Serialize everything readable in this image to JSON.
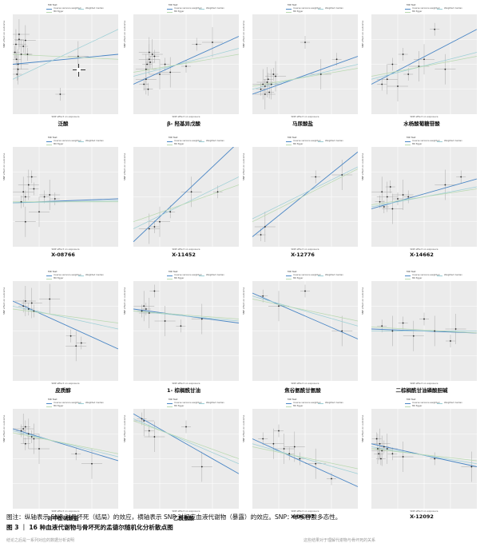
{
  "legend": {
    "title": "MR Test",
    "items": [
      {
        "label": "Inverse variance weighted",
        "color": "#4a86c5"
      },
      {
        "label": "Weighted median",
        "color": "#9ccfd6"
      },
      {
        "label": "MR Egger",
        "color": "#b9d9b0"
      }
    ]
  },
  "axes": {
    "xlabel": "SNP effect on exposure",
    "ylabel": "SNP effect on outcome"
  },
  "caption": {
    "note": "图注：纵轴表示 SNP 对骨坏死（结局）的效应，横轴表示 SNP 对相应血液代谢物（暴露）的效应。SNP：单核苷酸多态性。",
    "figure_label": "图 3 ｜ 16 种血液代谢物与骨坏死的孟德尔随机化分析散点图"
  },
  "footer": {
    "left": "结论之后是一系列对应的数据分析说明",
    "right": "这些结果对于理解代谢物与骨坏死的关系"
  },
  "chart_data": [
    {
      "type": "scatter",
      "title": "泛酸",
      "x": [
        0.02,
        0.03,
        0.035,
        0.05,
        0.06,
        0.08,
        0.1,
        0.12,
        0.14,
        0.05,
        0.04,
        0.06,
        0.45,
        0.62
      ],
      "y": [
        0.62,
        0.7,
        0.55,
        0.5,
        0.75,
        0.6,
        0.68,
        0.74,
        0.6,
        0.45,
        0.4,
        0.8,
        0.2,
        0.58
      ],
      "lines": [
        [
          0.5,
          0.6
        ],
        [
          0.35,
          0.85
        ],
        [
          0.6,
          0.55
        ]
      ]
    },
    {
      "type": "scatter",
      "title": "β- 羟基异戊酸",
      "x": [
        0.1,
        0.12,
        0.13,
        0.15,
        0.16,
        0.18,
        0.2,
        0.12,
        0.14,
        0.25,
        0.3,
        0.35,
        0.6,
        0.75,
        0.5,
        0.15
      ],
      "y": [
        0.3,
        0.45,
        0.5,
        0.55,
        0.52,
        0.6,
        0.58,
        0.35,
        0.25,
        0.4,
        0.5,
        0.42,
        0.7,
        0.72,
        0.48,
        0.62
      ],
      "lines": [
        [
          0.3,
          0.78
        ],
        [
          0.38,
          0.66
        ],
        [
          0.42,
          0.6
        ]
      ]
    },
    {
      "type": "scatter",
      "title": "马尿酸盐",
      "x": [
        0.08,
        0.1,
        0.12,
        0.14,
        0.15,
        0.18,
        0.2,
        0.22,
        0.5,
        0.65,
        0.8,
        0.12,
        0.16
      ],
      "y": [
        0.25,
        0.3,
        0.28,
        0.32,
        0.35,
        0.3,
        0.4,
        0.38,
        0.72,
        0.4,
        0.55,
        0.2,
        0.22
      ],
      "lines": [
        [
          0.2,
          0.58
        ],
        [
          0.25,
          0.5
        ],
        [
          0.28,
          0.46
        ]
      ]
    },
    {
      "type": "scatter",
      "title": "水杨酸葡糖苷酸",
      "x": [
        0.1,
        0.15,
        0.2,
        0.25,
        0.35,
        0.5,
        0.6,
        0.7,
        0.3,
        0.45
      ],
      "y": [
        0.3,
        0.35,
        0.5,
        0.28,
        0.4,
        0.55,
        0.85,
        0.45,
        0.6,
        0.48
      ],
      "lines": [
        [
          0.3,
          0.85
        ],
        [
          0.35,
          0.62
        ],
        [
          0.38,
          0.58
        ]
      ]
    },
    {
      "type": "scatter",
      "title": "X-08766",
      "x": [
        0.08,
        0.1,
        0.12,
        0.15,
        0.2,
        0.25,
        0.3,
        0.35,
        0.4,
        0.12,
        0.18
      ],
      "y": [
        0.45,
        0.55,
        0.5,
        0.62,
        0.58,
        0.35,
        0.5,
        0.52,
        0.48,
        0.25,
        0.7
      ],
      "lines": [
        [
          0.44,
          0.48
        ],
        [
          0.44,
          0.46
        ],
        [
          0.45,
          0.45
        ]
      ]
    },
    {
      "type": "scatter",
      "title": "X-11452",
      "x": [
        0.2,
        0.25,
        0.35,
        0.55,
        0.8,
        0.15
      ],
      "y": [
        0.2,
        0.25,
        0.35,
        0.55,
        0.55,
        0.18
      ],
      "lines": [
        [
          0.05,
          1.05
        ],
        [
          0.18,
          0.7
        ],
        [
          0.25,
          0.62
        ]
      ]
    },
    {
      "type": "scatter",
      "title": "X-12776",
      "x": [
        0.08,
        0.12,
        0.6,
        0.85
      ],
      "y": [
        0.12,
        0.2,
        0.7,
        0.72
      ],
      "lines": [
        [
          0.1,
          0.95
        ],
        [
          0.28,
          0.8
        ],
        [
          0.25,
          0.78
        ]
      ]
    },
    {
      "type": "scatter",
      "title": "X-14662",
      "x": [
        0.08,
        0.1,
        0.12,
        0.15,
        0.18,
        0.2,
        0.25,
        0.3,
        0.35,
        0.7,
        0.85
      ],
      "y": [
        0.45,
        0.55,
        0.4,
        0.5,
        0.6,
        0.38,
        0.48,
        0.52,
        0.5,
        0.62,
        0.7
      ],
      "lines": [
        [
          0.38,
          0.68
        ],
        [
          0.4,
          0.6
        ],
        [
          0.42,
          0.58
        ]
      ]
    },
    {
      "type": "scatter",
      "title": "皮质醇",
      "x": [
        0.1,
        0.12,
        0.15,
        0.18,
        0.2,
        0.35,
        0.55,
        0.6,
        0.65
      ],
      "y": [
        0.75,
        0.8,
        0.72,
        0.78,
        0.7,
        0.82,
        0.45,
        0.35,
        0.38
      ],
      "lines": [
        [
          0.8,
          0.32
        ],
        [
          0.75,
          0.52
        ],
        [
          0.72,
          0.58
        ]
      ]
    },
    {
      "type": "scatter",
      "title": "1- 棕榈酰甘油",
      "x": [
        0.08,
        0.1,
        0.12,
        0.15,
        0.2,
        0.3,
        0.45,
        0.65
      ],
      "y": [
        0.7,
        0.75,
        0.72,
        0.68,
        0.9,
        0.6,
        0.55,
        0.62
      ],
      "lines": [
        [
          0.72,
          0.58
        ],
        [
          0.7,
          0.6
        ],
        [
          0.7,
          0.62
        ]
      ]
    },
    {
      "type": "scatter",
      "title": "焦谷氨酰甘氨酸",
      "x": [
        0.1,
        0.25,
        0.5,
        0.85
      ],
      "y": [
        0.85,
        0.75,
        0.9,
        0.5
      ],
      "lines": [
        [
          0.88,
          0.42
        ],
        [
          0.85,
          0.55
        ],
        [
          0.82,
          0.6
        ]
      ]
    },
    {
      "type": "scatter",
      "title": "二棕榈酰甘油磷酸胆碱",
      "x": [
        0.1,
        0.2,
        0.3,
        0.4,
        0.5,
        0.6,
        0.75,
        0.8
      ],
      "y": [
        0.55,
        0.5,
        0.58,
        0.45,
        0.62,
        0.5,
        0.4,
        0.52
      ],
      "lines": [
        [
          0.52,
          0.48
        ],
        [
          0.5,
          0.5
        ],
        [
          0.54,
          0.48
        ]
      ]
    },
    {
      "type": "scatter",
      "title": "对甲酚硫酸盐",
      "x": [
        0.08,
        0.1,
        0.12,
        0.15,
        0.18,
        0.2,
        0.6,
        0.75,
        0.12,
        0.25
      ],
      "y": [
        0.78,
        0.8,
        0.82,
        0.75,
        0.72,
        0.7,
        0.55,
        0.45,
        0.65,
        0.6
      ],
      "lines": [
        [
          0.8,
          0.48
        ],
        [
          0.78,
          0.52
        ],
        [
          0.76,
          0.55
        ]
      ]
    },
    {
      "type": "scatter",
      "title": "乙酰氨酸",
      "x": [
        0.08,
        0.1,
        0.15,
        0.2,
        0.5,
        0.65
      ],
      "y": [
        0.9,
        0.88,
        0.78,
        0.72,
        0.82,
        0.42
      ],
      "lines": [
        [
          0.95,
          0.35
        ],
        [
          0.9,
          0.45
        ],
        [
          0.88,
          0.5
        ]
      ]
    },
    {
      "type": "scatter",
      "title": "X-06307",
      "x": [
        0.1,
        0.2,
        0.25,
        0.3,
        0.35,
        0.4,
        0.45,
        0.6,
        0.75
      ],
      "y": [
        0.7,
        0.65,
        0.78,
        0.6,
        0.55,
        0.62,
        0.5,
        0.45,
        0.3
      ],
      "lines": [
        [
          0.7,
          0.22
        ],
        [
          0.65,
          0.35
        ],
        [
          0.62,
          0.4
        ]
      ]
    },
    {
      "type": "scatter",
      "title": "X-12092",
      "x": [
        0.05,
        0.06,
        0.07,
        0.08,
        0.09,
        0.1,
        0.12,
        0.15,
        0.2,
        0.3,
        0.6,
        0.95
      ],
      "y": [
        0.7,
        0.6,
        0.55,
        0.65,
        0.5,
        0.58,
        0.62,
        0.6,
        0.55,
        0.52,
        0.5,
        0.42
      ],
      "lines": [
        [
          0.65,
          0.42
        ],
        [
          0.62,
          0.45
        ],
        [
          0.6,
          0.48
        ]
      ]
    }
  ]
}
